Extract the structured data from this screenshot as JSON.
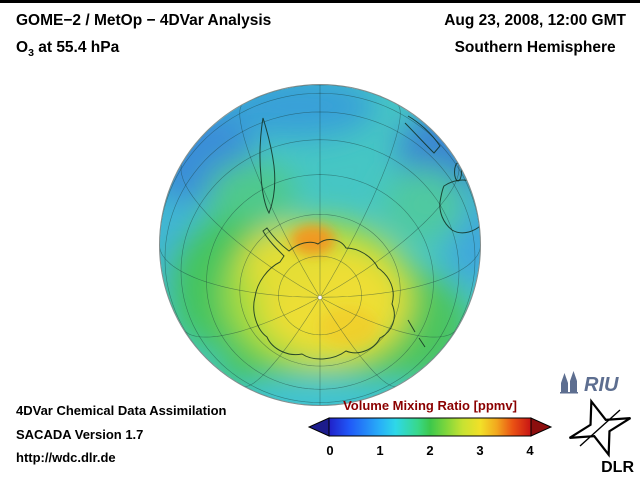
{
  "header": {
    "title": "GOME−2 / MetOp − 4DVar Analysis",
    "species_prefix": "O",
    "species_sub": "3",
    "level": " at 55.4 hPa",
    "datetime": "Aug 23, 2008, 12:00 GMT",
    "hemisphere": "Southern Hemisphere"
  },
  "footer": {
    "line1": "4DVar Chemical Data Assimilation",
    "line2": "SACADA Version 1.7",
    "line3": "http://wdc.dlr.de"
  },
  "colorbar": {
    "label": "Volume Mixing Ratio [ppmv]",
    "ticks": [
      "0",
      "1",
      "2",
      "3",
      "4"
    ],
    "underflow_color": "#1c1c8c",
    "overflow_color": "#8c0e0e",
    "gradient": [
      {
        "o": 0.0,
        "c": "#2020c8"
      },
      {
        "o": 0.1,
        "c": "#2058f8"
      },
      {
        "o": 0.25,
        "c": "#28aef8"
      },
      {
        "o": 0.33,
        "c": "#2ed8e8"
      },
      {
        "o": 0.44,
        "c": "#38d88a"
      },
      {
        "o": 0.5,
        "c": "#3cc84c"
      },
      {
        "o": 0.58,
        "c": "#7ed63c"
      },
      {
        "o": 0.66,
        "c": "#c6e232"
      },
      {
        "o": 0.75,
        "c": "#f2e028"
      },
      {
        "o": 0.83,
        "c": "#f2a81e"
      },
      {
        "o": 0.91,
        "c": "#ea5214"
      },
      {
        "o": 1.0,
        "c": "#c81414"
      }
    ]
  },
  "logos": {
    "riu_text": "RIU",
    "dlr_text": "DLR"
  },
  "chart_data": {
    "type": "heatmap",
    "title": "GOME−2 / MetOp − 4DVar Analysis",
    "subtitle": "O3 at 55.4 hPa",
    "datetime": "Aug 23, 2008, 12:00 GMT",
    "region": "Southern Hemisphere",
    "projection": "orthographic, centered near the South Pole",
    "quantity": "Ozone volume mixing ratio",
    "units": "ppmv",
    "colorbar_range": [
      0,
      4
    ],
    "colorbar_ticks": [
      0,
      1,
      2,
      3,
      4
    ],
    "legend_position": "bottom center",
    "grid": "graticule on (parallels ~15 deg, meridians ~30 deg)",
    "features": [
      {
        "location": "hotspot near 75S poleward of Antarctic Peninsula",
        "value_ppmv": 3.0,
        "color": "orange"
      },
      {
        "location": "polar cap over Antarctica",
        "value_ppmv": 2.6,
        "color": "yellow"
      },
      {
        "location": "inner ring around polar cap",
        "value_ppmv": 2.2,
        "color": "yellow-green"
      },
      {
        "location": "mid-latitude ring ~50-60S",
        "value_ppmv": 2.0,
        "color": "green"
      },
      {
        "location": "subtropical band ~30-40S",
        "value_ppmv": 1.4,
        "color": "cyan"
      },
      {
        "location": "tropical patches near limb (S America / Africa / Australia longitudes)",
        "value_ppmv": 1.0,
        "color": "blue"
      }
    ]
  }
}
